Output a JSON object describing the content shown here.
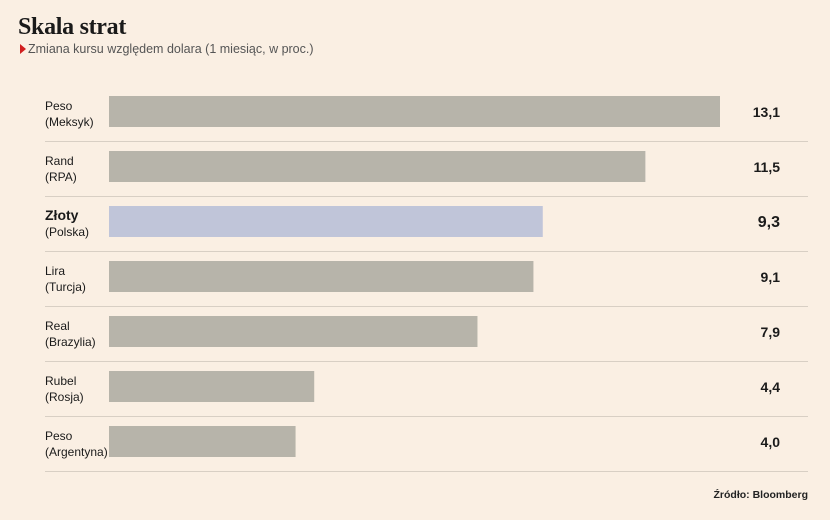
{
  "chart_data": {
    "type": "bar",
    "orientation": "horizontal",
    "title": "Skala strat",
    "subtitle": "Zmiana kursu względem dolara (1 miesiąc, w proc.)",
    "categories": [
      {
        "name": "Peso",
        "country": "(Meksyk)"
      },
      {
        "name": "Rand",
        "country": "(RPA)"
      },
      {
        "name": "Złoty",
        "country": "(Polska)"
      },
      {
        "name": "Lira",
        "country": "(Turcja)"
      },
      {
        "name": "Real",
        "country": "(Brazylia)"
      },
      {
        "name": "Rubel",
        "country": "(Rosja)"
      },
      {
        "name": "Peso",
        "country": "(Argentyna)"
      }
    ],
    "values": [
      13.1,
      11.5,
      9.3,
      9.1,
      7.9,
      4.4,
      4.0
    ],
    "value_labels": [
      "13,1",
      "11,5",
      "9,3",
      "9,1",
      "7,9",
      "4,4",
      "4,0"
    ],
    "highlight_index": 2,
    "xlim": [
      0,
      13.1
    ],
    "grid": false,
    "legend": "none"
  },
  "colors": {
    "background": "#faefe3",
    "bar": "#b7b4aa",
    "bar_highlight": "#c0c5d9",
    "separator": "#d8cfc4",
    "accent": "#d11f1f"
  },
  "source": "Źródło: Bloomberg"
}
